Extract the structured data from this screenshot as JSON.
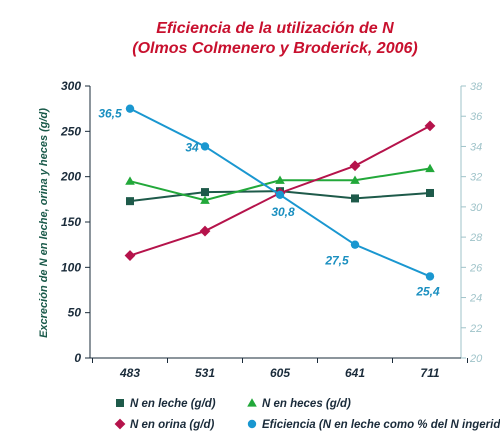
{
  "chart_data": {
    "type": "line",
    "title": "Eficiencia de la utilización de N",
    "subtitle": "(Olmos Colmenero y Broderick, 2006)",
    "ylabel": "Excreción de N en leche, orina y heces (g/d)",
    "categories": [
      "483",
      "531",
      "605",
      "641",
      "711"
    ],
    "y_left": {
      "min": 0,
      "max": 300,
      "ticks": [
        "0",
        "50",
        "100",
        "150",
        "200",
        "250",
        "300"
      ]
    },
    "y_right": {
      "min": 20,
      "max": 38,
      "ticks": [
        "20",
        "22",
        "24",
        "26",
        "28",
        "30",
        "32",
        "34",
        "36",
        "38"
      ]
    },
    "grid": false,
    "legend_position": "bottom",
    "series": [
      {
        "name": "N en leche (g/d)",
        "axis": "left",
        "marker": "square",
        "color": "#1e5a4a",
        "values": [
          173,
          183,
          184,
          176,
          182
        ]
      },
      {
        "name": "N en heces (g/d)",
        "axis": "left",
        "marker": "triangle",
        "color": "#22a83a",
        "values": [
          195,
          174,
          196,
          196,
          209
        ]
      },
      {
        "name": "N en orina (g/d)",
        "axis": "left",
        "marker": "diamond",
        "color": "#b5134b",
        "values": [
          113,
          140,
          182,
          212,
          256
        ]
      },
      {
        "name": "Eficiencia (N en leche como % del N ingerido)",
        "axis": "right",
        "marker": "circle",
        "color": "#1a97d0",
        "values": [
          36.5,
          34,
          30.8,
          27.5,
          25.4
        ],
        "labels": [
          "36,5",
          "34",
          "30,8",
          "27,5",
          "25,4"
        ]
      }
    ]
  }
}
